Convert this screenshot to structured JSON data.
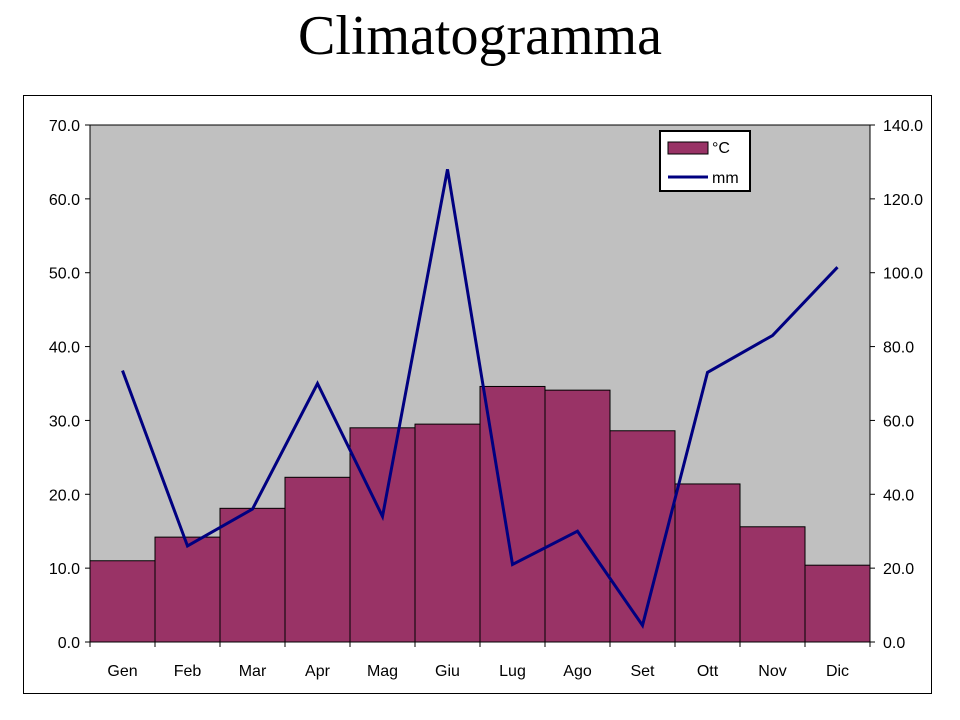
{
  "title": "Climatogramma",
  "chart_data": {
    "type": "bar",
    "categories": [
      "Gen",
      "Feb",
      "Mar",
      "Apr",
      "Mag",
      "Giu",
      "Lug",
      "Ago",
      "Set",
      "Ott",
      "Nov",
      "Dic"
    ],
    "series": [
      {
        "name": "°C",
        "type": "bar",
        "axis": "left",
        "values": [
          11.0,
          14.2,
          18.1,
          22.3,
          29.0,
          29.5,
          34.6,
          34.1,
          28.6,
          21.4,
          15.6,
          10.4
        ]
      },
      {
        "name": "mm",
        "type": "line",
        "axis": "right",
        "values": [
          73.5,
          26.0,
          36.0,
          70.0,
          34.0,
          128.0,
          21.0,
          30.0,
          4.5,
          73.0,
          83.0,
          101.5
        ]
      }
    ],
    "y_left": {
      "min": 0,
      "max": 70,
      "ticks": [
        "0.0",
        "10.0",
        "20.0",
        "30.0",
        "40.0",
        "50.0",
        "60.0",
        "70.0"
      ]
    },
    "y_right": {
      "min": 0,
      "max": 140,
      "ticks": [
        "0.0",
        "20.0",
        "40.0",
        "60.0",
        "80.0",
        "100.0",
        "120.0",
        "140.0"
      ]
    },
    "legend_position": "top-right",
    "colors": {
      "bar": "#993366",
      "line": "#000080",
      "plot_bg": "#C0C0C0"
    }
  }
}
